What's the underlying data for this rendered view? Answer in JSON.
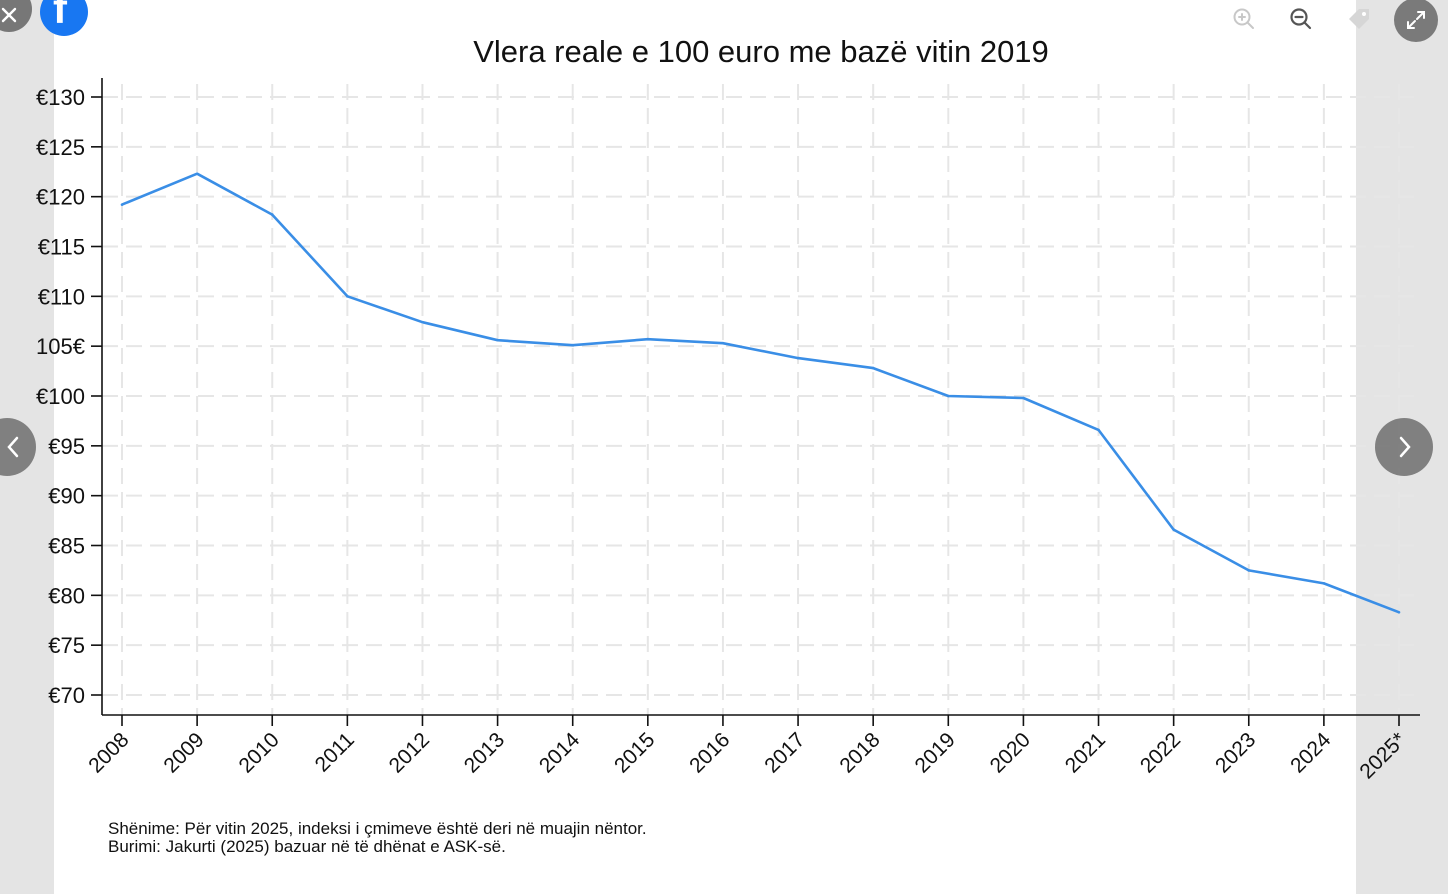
{
  "viewer": {
    "close_icon": "close-icon",
    "share_icon": "facebook-icon",
    "social_letter": "f",
    "zoom_in_icon": "zoom-in-icon",
    "zoom_out_icon": "zoom-out-icon",
    "tag_icon": "tag-icon",
    "expand_icon": "expand-icon",
    "prev_icon": "chevron-left-icon",
    "next_icon": "chevron-right-icon"
  },
  "chart_data": {
    "type": "line",
    "title": "Vlera reale e 100 euro me bazë vitin 2019",
    "xlabel": "",
    "ylabel": "",
    "categories": [
      "2008",
      "2009",
      "2010",
      "2011",
      "2012",
      "2013",
      "2014",
      "2015",
      "2016",
      "2017",
      "2018",
      "2019",
      "2020",
      "2021",
      "2022",
      "2023",
      "2024",
      "2025*"
    ],
    "series": [
      {
        "name": "Vlera reale",
        "color": "#3a8ee6",
        "values": [
          119.2,
          122.3,
          118.2,
          110.0,
          107.4,
          105.6,
          105.1,
          105.7,
          105.3,
          103.8,
          102.8,
          100.0,
          99.8,
          96.6,
          86.6,
          82.5,
          81.2,
          78.3
        ]
      }
    ],
    "ylim": [
      68,
      131.5
    ],
    "yticks": [
      130,
      125,
      120,
      115,
      110,
      105,
      100,
      95,
      90,
      85,
      80,
      75,
      70
    ],
    "ytick_labels": [
      "€130",
      "€125",
      "€120",
      "€115",
      "€110",
      "105€",
      "€100",
      "€95",
      "€90",
      "€85",
      "€80",
      "€75",
      "€70"
    ],
    "grid": true,
    "notes": [
      "Shënime: Për vitin 2025, indeksi i çmimeve është deri në muajin nëntor.",
      "Burimi: Jakurti (2025) bazuar në të dhënat e ASK-së."
    ]
  }
}
